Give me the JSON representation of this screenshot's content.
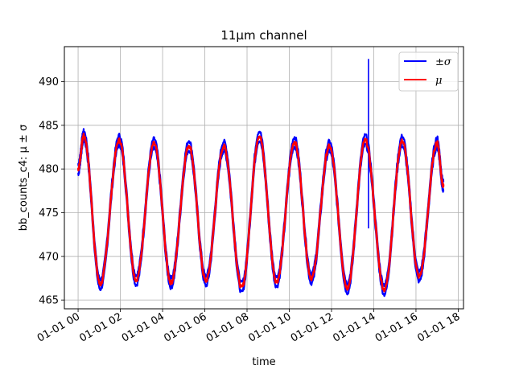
{
  "chart_data": {
    "type": "line",
    "title": "11μm channel",
    "xlabel": "time",
    "ylabel": "bb_counts_c4: μ ± σ",
    "x_unit": "hours",
    "xlim": [
      -0.65,
      18.25
    ],
    "ylim": [
      464.0,
      494.0
    ],
    "xticks": [
      0,
      2,
      4,
      6,
      8,
      10,
      12,
      14,
      16,
      18
    ],
    "xtick_labels": [
      "01-01 00",
      "01-01 02",
      "01-01 04",
      "01-01 06",
      "01-01 08",
      "01-01 10",
      "01-01 12",
      "01-01 14",
      "01-01 16",
      "01-01 18"
    ],
    "yticks": [
      465,
      470,
      475,
      480,
      485,
      490
    ],
    "ytick_labels": [
      "465",
      "470",
      "475",
      "480",
      "485",
      "490"
    ],
    "grid": true,
    "legend_position": "top-right",
    "oscillation": {
      "peaks": [
        [
          0.27,
          483.8
        ],
        [
          1.95,
          483.3
        ],
        [
          3.6,
          482.9
        ],
        [
          5.25,
          482.7
        ],
        [
          6.9,
          482.6
        ],
        [
          8.58,
          483.8
        ],
        [
          10.25,
          483.1
        ],
        [
          11.9,
          482.6
        ],
        [
          13.6,
          483.3
        ],
        [
          15.35,
          483.2
        ],
        [
          17.0,
          483.0
        ]
      ],
      "troughs": [
        [
          1.05,
          466.8
        ],
        [
          2.75,
          467.3
        ],
        [
          4.4,
          467.0
        ],
        [
          6.05,
          467.2
        ],
        [
          7.75,
          466.4
        ],
        [
          9.4,
          467.1
        ],
        [
          11.05,
          467.5
        ],
        [
          12.75,
          466.4
        ],
        [
          14.5,
          466.2
        ],
        [
          16.15,
          467.7
        ]
      ],
      "start": [
        0.0,
        480.0
      ],
      "end": [
        17.3,
        478.0
      ]
    },
    "spike": {
      "x": 13.75,
      "ymin": 473.2,
      "ymax": 492.6
    },
    "series": [
      {
        "name": "±σ",
        "color": "#0000ff",
        "band_halfwidth": 0.55
      },
      {
        "name": "μ",
        "color": "#ff0000"
      }
    ]
  }
}
